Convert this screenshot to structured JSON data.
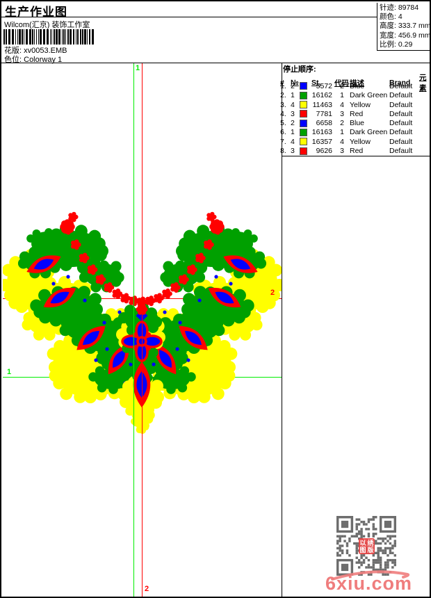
{
  "header": {
    "title": "生产作业图",
    "studio": "Wilcom(汇京) 装饰工作室",
    "pattern_label": "花版:",
    "pattern_value": "xv0053.EMB",
    "colorway_label": "色位:",
    "colorway_value": "Colorway 1"
  },
  "stats": {
    "rows": [
      {
        "label": "针迹:",
        "value": "89784"
      },
      {
        "label": "颜色:",
        "value": "4"
      },
      {
        "label": "高度:",
        "value": "333.7 mm"
      },
      {
        "label": "宽度:",
        "value": "456.9 mm"
      },
      {
        "label": "比例:",
        "value": "0.29"
      }
    ]
  },
  "stop_sequence": {
    "title": "停止顺序:",
    "columns": [
      "#",
      "№",
      "",
      "St.",
      "代码",
      "描述",
      "Brand",
      "元素"
    ],
    "rows": [
      {
        "seq": "1.",
        "needle": "2",
        "color": "#0000ff",
        "st": "5572",
        "code": "2",
        "desc": "Blue",
        "brand": "Default",
        "elem": ""
      },
      {
        "seq": "2.",
        "needle": "1",
        "color": "#00a000",
        "st": "16162",
        "code": "1",
        "desc": "Dark Green",
        "brand": "Default",
        "elem": ""
      },
      {
        "seq": "3.",
        "needle": "4",
        "color": "#ffff00",
        "st": "11463",
        "code": "4",
        "desc": "Yellow",
        "brand": "Default",
        "elem": ""
      },
      {
        "seq": "4.",
        "needle": "3",
        "color": "#ff0000",
        "st": "7781",
        "code": "3",
        "desc": "Red",
        "brand": "Default",
        "elem": ""
      },
      {
        "seq": "5.",
        "needle": "2",
        "color": "#0000ff",
        "st": "6658",
        "code": "2",
        "desc": "Blue",
        "brand": "Default",
        "elem": ""
      },
      {
        "seq": "6.",
        "needle": "1",
        "color": "#00a000",
        "st": "16163",
        "code": "1",
        "desc": "Dark Green",
        "brand": "Default",
        "elem": ""
      },
      {
        "seq": "7.",
        "needle": "4",
        "color": "#ffff00",
        "st": "16357",
        "code": "4",
        "desc": "Yellow",
        "brand": "Default",
        "elem": ""
      },
      {
        "seq": "8.",
        "needle": "3",
        "color": "#ff0000",
        "st": "9626",
        "code": "3",
        "desc": "Red",
        "brand": "Default",
        "elem": ""
      }
    ]
  },
  "rulers": {
    "start_marker": "1",
    "end_marker": "2",
    "start_color": "#00ee00",
    "end_color": "#ff0000"
  },
  "design_colors": {
    "red": "#ff0000",
    "green": "#00a000",
    "yellow": "#ffff00",
    "blue": "#0000ff"
  },
  "watermark": {
    "text": "6xiu.com",
    "text_color": "#ef7d7d",
    "seal_chars": "以绣图版",
    "seal_color": "#e84545",
    "qr_color": "#5a5a5a"
  }
}
